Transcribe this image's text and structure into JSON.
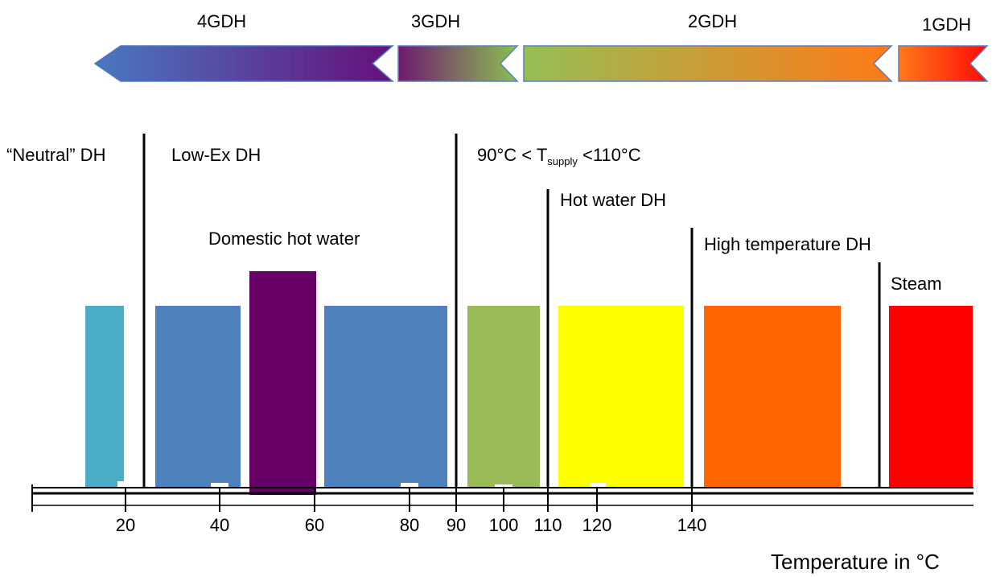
{
  "generations": [
    {
      "label": "4GDH"
    },
    {
      "label": "3GDH"
    },
    {
      "label": "2GDH"
    },
    {
      "label": "1GDH"
    }
  ],
  "categories": {
    "neutral": "“Neutral” DH",
    "lowex": "Low-Ex DH",
    "supply_prefix": "90°C < T",
    "supply_sub": "supply",
    "supply_suffix": " <110°C",
    "domestic": "Domestic hot water",
    "hotwater": "Hot water DH",
    "hightemp": "High temperature DH",
    "steam": "Steam"
  },
  "axis": {
    "title": "Temperature in °C",
    "ticks": [
      "20",
      "40",
      "60",
      "80",
      "90",
      "100",
      "110",
      "120",
      "140"
    ]
  },
  "colors": {
    "neutral": "#4bacc6",
    "lowex": "#4f81bd",
    "domestic": "#660066",
    "green": "#9bbb59",
    "yellow": "#ffff00",
    "orange": "#ff6600",
    "red": "#ff0000"
  }
}
